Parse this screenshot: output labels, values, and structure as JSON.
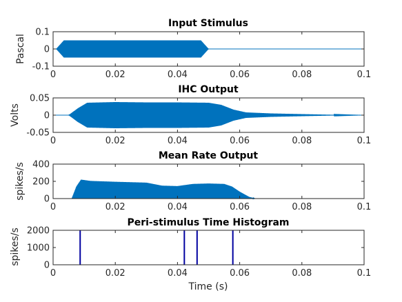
{
  "chart_data": [
    {
      "type": "line",
      "title": "Input Stimulus",
      "ylabel": "Pascal",
      "xlabel": "",
      "xlim": [
        0,
        0.1
      ],
      "ylim": [
        -0.1,
        0.1
      ],
      "xticks": [
        "0",
        "0.02",
        "0.04",
        "0.06",
        "0.08",
        "0.1"
      ],
      "yticks": [
        "-0.1",
        "0",
        "0.1"
      ],
      "ytick_values": [
        -0.1,
        0,
        0.1
      ],
      "color": "#0072BD",
      "envelope": [
        [
          0,
          0
        ],
        [
          0.001,
          0
        ],
        [
          0.0035,
          0.05
        ],
        [
          0.01,
          0.05
        ],
        [
          0.02,
          0.05
        ],
        [
          0.03,
          0.05
        ],
        [
          0.04,
          0.05
        ],
        [
          0.0475,
          0.05
        ],
        [
          0.05,
          0
        ],
        [
          0.1,
          0
        ]
      ]
    },
    {
      "type": "line",
      "title": "IHC Output",
      "ylabel": "Volts",
      "xlabel": "",
      "xlim": [
        0,
        0.1
      ],
      "ylim": [
        -0.05,
        0.05
      ],
      "xticks": [
        "0",
        "0.02",
        "0.04",
        "0.06",
        "0.08",
        "0.1"
      ],
      "yticks": [
        "-0.05",
        "0",
        "0.05"
      ],
      "ytick_values": [
        -0.05,
        0,
        0.05
      ],
      "color": "#0072BD",
      "envelope": [
        [
          0,
          0
        ],
        [
          0.005,
          0
        ],
        [
          0.008,
          0.02
        ],
        [
          0.011,
          0.036
        ],
        [
          0.02,
          0.038
        ],
        [
          0.03,
          0.037
        ],
        [
          0.04,
          0.037
        ],
        [
          0.05,
          0.036
        ],
        [
          0.054,
          0.03
        ],
        [
          0.058,
          0.016
        ],
        [
          0.062,
          0.008
        ],
        [
          0.07,
          0.005
        ],
        [
          0.08,
          0.003
        ],
        [
          0.09,
          0.001
        ],
        [
          0.1,
          0
        ]
      ]
    },
    {
      "type": "line",
      "title": "Mean Rate Output",
      "ylabel": "spikes/s",
      "xlabel": "",
      "xlim": [
        0,
        0.1
      ],
      "ylim": [
        0,
        400
      ],
      "xticks": [
        "0",
        "0.02",
        "0.04",
        "0.06",
        "0.08",
        "0.1"
      ],
      "yticks": [
        "0",
        "200",
        "400"
      ],
      "ytick_values": [
        0,
        200,
        400
      ],
      "color": "#0072BD",
      "envelope": [
        [
          0,
          0
        ],
        [
          0.006,
          0
        ],
        [
          0.0075,
          140
        ],
        [
          0.009,
          220
        ],
        [
          0.012,
          205
        ],
        [
          0.02,
          195
        ],
        [
          0.03,
          185
        ],
        [
          0.035,
          150
        ],
        [
          0.04,
          145
        ],
        [
          0.045,
          170
        ],
        [
          0.05,
          175
        ],
        [
          0.055,
          170
        ],
        [
          0.0575,
          140
        ],
        [
          0.06,
          80
        ],
        [
          0.063,
          20
        ],
        [
          0.065,
          0
        ],
        [
          0.1,
          0
        ]
      ]
    },
    {
      "type": "bar",
      "title": "Peri-stimulus Time Histogram",
      "ylabel": "spikes/s",
      "xlabel": "Time (s)",
      "xlim": [
        0,
        0.1
      ],
      "ylim": [
        0,
        2000
      ],
      "xticks": [
        "0",
        "0.02",
        "0.04",
        "0.06",
        "0.08",
        "0.1"
      ],
      "yticks": [
        "0",
        "1000",
        "2000"
      ],
      "ytick_values": [
        0,
        1000,
        2000
      ],
      "color": "#0000A0",
      "x": [
        0.0087,
        0.0422,
        0.0463,
        0.0578
      ],
      "values": [
        2000,
        2000,
        2000,
        2000
      ]
    }
  ]
}
